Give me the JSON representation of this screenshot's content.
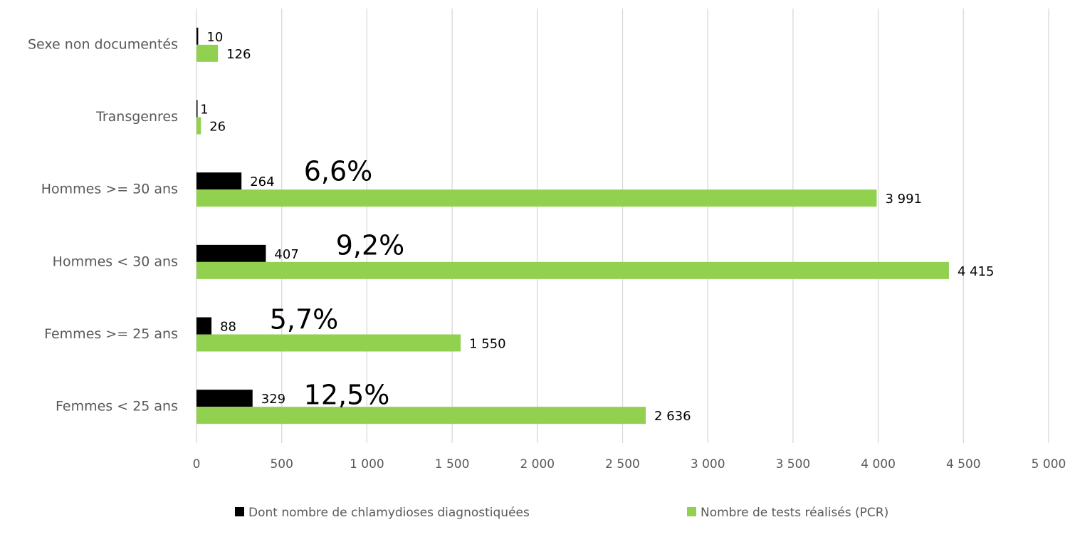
{
  "chart_data": {
    "type": "barh",
    "categories": [
      "Sexe non documentés",
      "Transgenres",
      "Hommes >= 30 ans",
      "Hommes < 30 ans",
      "Femmes >= 25 ans",
      "Femmes < 25 ans"
    ],
    "series": [
      {
        "name": "Dont nombre de chlamydioses diagnostiquées",
        "color": "#000000",
        "values": [
          10,
          1,
          264,
          407,
          88,
          329
        ]
      },
      {
        "name": "Nombre de tests réalisés (PCR)",
        "color": "#92d050",
        "values": [
          126,
          26,
          3991,
          4415,
          1550,
          2636
        ],
        "value_labels": [
          "126",
          "26",
          "3 991",
          "4 415",
          "1 550",
          "2 636"
        ]
      }
    ],
    "annotations": [
      "6,6%",
      "9,2%",
      "5,7%",
      "12,5%"
    ],
    "xlim": [
      0,
      5000
    ],
    "xticks": [
      0,
      500,
      {
        "value": 1000,
        "label": "1 000"
      },
      {
        "value": 1500,
        "label": "1 500"
      },
      {
        "value": 2000,
        "label": "2 000"
      },
      {
        "value": 2500,
        "label": "2 500"
      },
      {
        "value": 3000,
        "label": "3 000"
      },
      {
        "value": 3500,
        "label": "3 500"
      },
      {
        "value": 4000,
        "label": "4 000"
      },
      {
        "value": 4500,
        "label": "4 500"
      },
      {
        "value": 5000,
        "label": "5 000"
      }
    ],
    "grid": true,
    "legend": "bottom"
  }
}
